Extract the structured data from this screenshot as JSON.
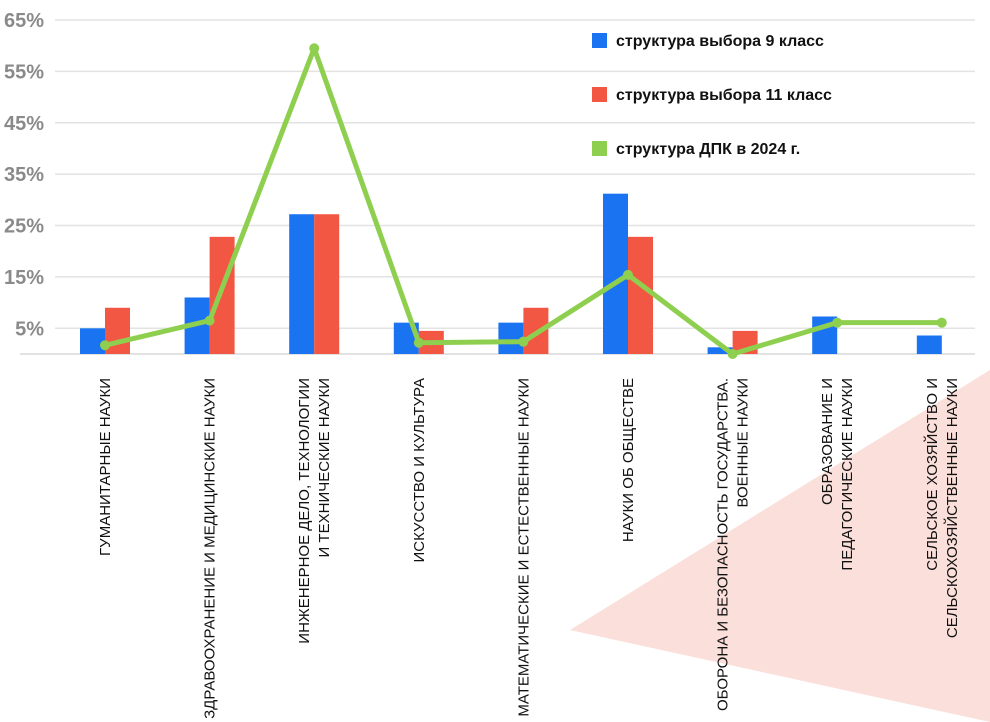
{
  "chart_data": {
    "type": "bar",
    "title": "",
    "xlabel": "",
    "ylabel": "",
    "ylim": [
      0,
      65
    ],
    "y_ticks": [
      5,
      15,
      25,
      35,
      45,
      55,
      65
    ],
    "y_tick_labels": [
      "5%",
      "15%",
      "25%",
      "35%",
      "45%",
      "55%",
      "65%"
    ],
    "grid": true,
    "legend_position": "top-right",
    "categories": [
      [
        "ГУМАНИТАРНЫЕ НАУКИ"
      ],
      [
        "ЗДРАВООХРАНЕНИЕ И МЕДИЦИНСКИЕ НАУКИ"
      ],
      [
        "ИНЖЕНЕРНОЕ ДЕЛО, ТЕХНОЛОГИИ",
        "И ТЕХНИЧЕСКИЕ НАУКИ"
      ],
      [
        "ИСКУССТВО И КУЛЬТУРА"
      ],
      [
        "МАТЕМАТИЧЕСКИЕ И ЕСТЕСТВЕННЫЕ НАУКИ"
      ],
      [
        "НАУКИ ОБ ОБЩЕСТВЕ"
      ],
      [
        "ОБОРОНА И БЕЗОПАСНОСТЬ ГОСУДАРСТВА.",
        "ВОЕННЫЕ НАУКИ"
      ],
      [
        "ОБРАЗОВАНИЕ И",
        "ПЕДАГОГИЧЕСКИЕ НАУКИ"
      ],
      [
        "СЕЛЬСКОЕ ХОЗЯЙСТВО И",
        "СЕЛЬСКОХОЗЯЙСТВЕННЫЕ НАУКИ"
      ]
    ],
    "series": [
      {
        "name": "структура выбора 9 класс",
        "type": "bar",
        "color": "#1a73f0",
        "values": [
          5.0,
          11.0,
          27.2,
          6.1,
          6.1,
          31.2,
          1.3,
          7.3,
          3.6
        ]
      },
      {
        "name": "структура выбора 11 класс",
        "type": "bar",
        "color": "#f25743",
        "values": [
          9.0,
          22.8,
          27.2,
          4.5,
          9.0,
          22.8,
          4.5,
          0,
          0
        ]
      },
      {
        "name": "структура ДПК в 2024 г.",
        "type": "line",
        "color": "#8fcf4f",
        "values": [
          1.7,
          6.5,
          59.5,
          2.2,
          2.4,
          15.4,
          0,
          6.1,
          6.1
        ]
      }
    ]
  }
}
